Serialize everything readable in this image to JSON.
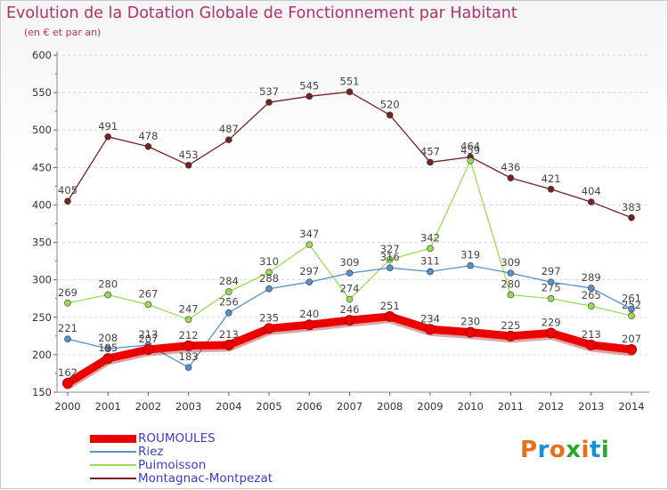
{
  "title": "Evolution de la Dotation Globale de Fonctionnement par Habitant",
  "subtitle": "(en € et par an)",
  "logo": {
    "text": "Proxiti",
    "colors": [
      "#e8701a",
      "#1a8fd8",
      "#e8701a",
      "#2aa830",
      "#e8701a",
      "#1a8fd8",
      "#2aa830"
    ]
  },
  "chart_data": {
    "type": "line",
    "x": [
      "2000",
      "2001",
      "2002",
      "2003",
      "2004",
      "2005",
      "2006",
      "2007",
      "2008",
      "2009",
      "2010",
      "2011",
      "2012",
      "2013",
      "2014"
    ],
    "ylim": [
      150,
      600
    ],
    "yticks": [
      150,
      200,
      250,
      300,
      350,
      400,
      450,
      500,
      550,
      600
    ],
    "grid": "horizontal dashed",
    "legend_position": "bottom-left",
    "series": [
      {
        "name": "Montagnac-Montpezat",
        "color": "#7a2020",
        "values": [
          405,
          491,
          478,
          453,
          487,
          537,
          545,
          551,
          520,
          457,
          464,
          436,
          421,
          404,
          383
        ]
      },
      {
        "name": "Puimoisson",
        "color": "#99dd55",
        "values": [
          269,
          280,
          267,
          247,
          284,
          310,
          347,
          274,
          327,
          342,
          459,
          280,
          275,
          265,
          252
        ]
      },
      {
        "name": "Riez",
        "color": "#5591cc",
        "values": [
          221,
          208,
          213,
          183,
          256,
          288,
          297,
          309,
          316,
          311,
          319,
          309,
          297,
          289,
          261
        ]
      },
      {
        "name": "ROUMOULES",
        "color": "#ee0000",
        "values": [
          162,
          195,
          207,
          212,
          213,
          235,
          240,
          246,
          251,
          234,
          230,
          225,
          229,
          213,
          207
        ]
      }
    ],
    "legend_order": [
      "ROUMOULES",
      "Riez",
      "Puimoisson",
      "Montagnac-Montpezat"
    ]
  }
}
